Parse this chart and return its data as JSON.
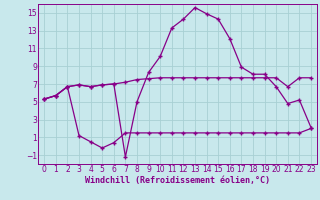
{
  "xlabel": "Windchill (Refroidissement éolien,°C)",
  "background_color": "#c8e8ec",
  "grid_color": "#a8d0d4",
  "line_color": "#880088",
  "xlim": [
    -0.5,
    23.5
  ],
  "ylim": [
    -2.0,
    16.0
  ],
  "xticks": [
    0,
    1,
    2,
    3,
    4,
    5,
    6,
    7,
    8,
    9,
    10,
    11,
    12,
    13,
    14,
    15,
    16,
    17,
    18,
    19,
    20,
    21,
    22,
    23
  ],
  "yticks": [
    -1,
    1,
    3,
    5,
    7,
    9,
    11,
    13,
    15
  ],
  "series1_x": [
    0,
    1,
    2,
    3,
    4,
    5,
    6,
    7,
    8,
    9,
    10,
    11,
    12,
    13,
    14,
    15,
    16,
    17,
    18,
    19,
    20,
    21,
    22,
    23
  ],
  "series1_y": [
    5.3,
    5.7,
    6.7,
    6.9,
    6.7,
    6.9,
    7.0,
    7.2,
    7.5,
    7.6,
    7.7,
    7.7,
    7.7,
    7.7,
    7.7,
    7.7,
    7.7,
    7.7,
    7.7,
    7.7,
    7.7,
    6.7,
    7.7,
    7.7
  ],
  "series2_x": [
    0,
    1,
    2,
    3,
    4,
    5,
    6,
    7,
    8,
    9,
    10,
    11,
    12,
    13,
    14,
    15,
    16,
    17,
    18,
    19,
    20,
    21,
    22,
    23
  ],
  "series2_y": [
    5.3,
    5.7,
    6.7,
    6.9,
    6.7,
    6.9,
    7.0,
    -1.2,
    5.0,
    8.3,
    10.1,
    13.3,
    14.3,
    15.6,
    14.9,
    14.3,
    12.1,
    8.9,
    8.1,
    8.1,
    6.7,
    4.8,
    5.2,
    2.1
  ],
  "series3_x": [
    0,
    1,
    2,
    3,
    4,
    5,
    6,
    7,
    8,
    9,
    10,
    11,
    12,
    13,
    14,
    15,
    16,
    17,
    18,
    19,
    20,
    21,
    22,
    23
  ],
  "series3_y": [
    5.3,
    5.7,
    6.7,
    1.2,
    0.5,
    -0.2,
    0.4,
    1.5,
    1.5,
    1.5,
    1.5,
    1.5,
    1.5,
    1.5,
    1.5,
    1.5,
    1.5,
    1.5,
    1.5,
    1.5,
    1.5,
    1.5,
    1.5,
    2.0
  ],
  "marker": "+",
  "markersize": 3.5,
  "markeredgewidth": 1.0,
  "linewidth": 0.9,
  "tick_labelsize": 5.5,
  "xlabel_fontsize": 6.0
}
